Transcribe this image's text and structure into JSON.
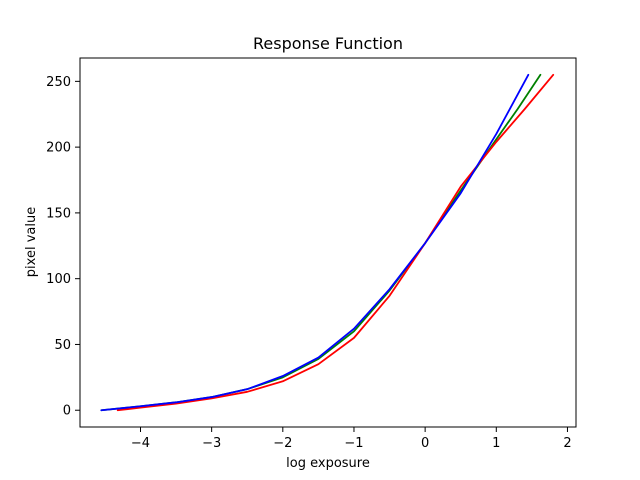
{
  "chart_data": {
    "type": "line",
    "title": "Response Function",
    "xlabel": "log exposure",
    "ylabel": "pixel value",
    "xlim": [
      -4.85,
      2.12
    ],
    "ylim": [
      -12.75,
      267.75
    ],
    "xticks": [
      -4,
      -3,
      -2,
      -1,
      0,
      1,
      2
    ],
    "xtick_labels": [
      "−4",
      "−3",
      "−2",
      "−1",
      "0",
      "1",
      "2"
    ],
    "yticks": [
      0,
      50,
      100,
      150,
      200,
      250
    ],
    "ytick_labels": [
      "0",
      "50",
      "100",
      "150",
      "200",
      "250"
    ],
    "grid": false,
    "series": [
      {
        "color": "#008000",
        "x": [
          -4.55,
          -4.0,
          -3.5,
          -3.0,
          -2.5,
          -2.0,
          -1.5,
          -1.0,
          -0.5,
          0.0,
          0.5,
          1.0,
          1.3,
          1.62
        ],
        "y": [
          0,
          3,
          6,
          10,
          16,
          25,
          39,
          60,
          91,
          127,
          167,
          206,
          229,
          255
        ]
      },
      {
        "color": "#ff0000",
        "x": [
          -4.32,
          -4.0,
          -3.5,
          -3.0,
          -2.5,
          -2.0,
          -1.5,
          -1.0,
          -0.5,
          0.0,
          0.5,
          1.0,
          1.4,
          1.8
        ],
        "y": [
          0,
          2,
          5,
          9,
          14,
          22,
          35,
          55,
          87,
          127,
          170,
          204,
          229,
          255
        ]
      },
      {
        "color": "#0000ff",
        "x": [
          -4.55,
          -4.0,
          -3.5,
          -3.0,
          -2.5,
          -2.0,
          -1.5,
          -1.0,
          -0.5,
          0.0,
          0.5,
          1.0,
          1.2,
          1.45
        ],
        "y": [
          0,
          3,
          6,
          10,
          16,
          26,
          40,
          62,
          92,
          127,
          165,
          210,
          230,
          255
        ]
      }
    ]
  }
}
